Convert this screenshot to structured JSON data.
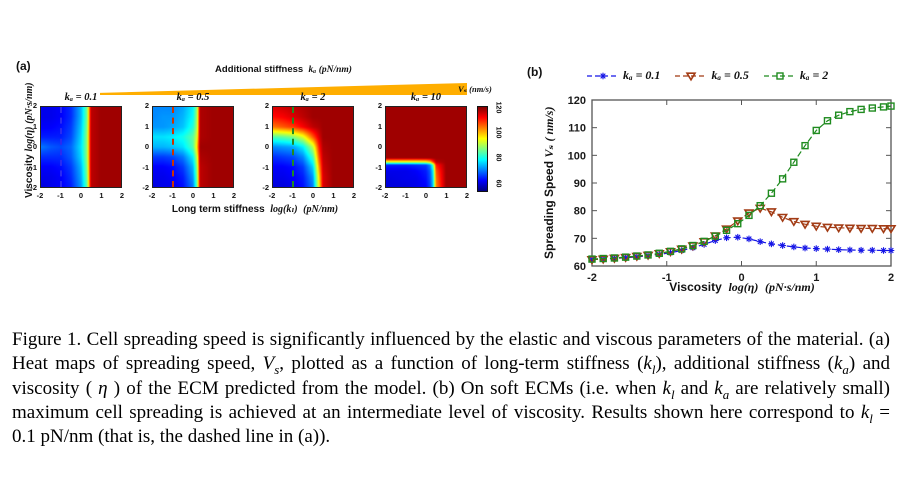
{
  "panel_a": {
    "label": "(a)",
    "wedge": {
      "label_pre": "Additional stiffness",
      "label_math": "kₐ",
      "label_unit": "(pN/nm)",
      "color": "#FFAE00"
    },
    "ylabel": {
      "pre": "Viscosity",
      "math": "log(η)",
      "unit": "(pN·s/nm)"
    },
    "xlabel": {
      "pre": "Long term stiffness",
      "math": "log(kₗ)",
      "unit": "(pN/nm)"
    },
    "colorbar": {
      "label": "Vₛ (nm/s)",
      "ticks": [
        120,
        100,
        80,
        60
      ]
    }
  },
  "panel_b": {
    "label": "(b)",
    "ylabel": {
      "pre": "Spreading Speed",
      "math": "Vₛ",
      "unit": "( nm/s)"
    },
    "xlabel": {
      "pre": "Viscosity",
      "math": "log(η)",
      "unit": "(pN·s/nm)"
    }
  },
  "chart_data": [
    {
      "type": "heatmap",
      "xlabel": "Long term stiffness log(kl) (pN/nm)",
      "ylabel": "Viscosity log(eta) (pN·s/nm)",
      "xlim": [
        -2,
        2
      ],
      "ylim": [
        -2,
        2
      ],
      "xticks": [
        -2,
        -1,
        0,
        1,
        2
      ],
      "yticks": [
        2,
        1,
        0,
        -1,
        -2
      ],
      "colormap": {
        "name": "jet",
        "vmin": 56,
        "vmax": 122,
        "stops": [
          [
            0,
            "#000080"
          ],
          [
            0.125,
            "#0000ff"
          ],
          [
            0.375,
            "#00ffff"
          ],
          [
            0.625,
            "#ffff00"
          ],
          [
            0.875,
            "#ff0000"
          ],
          [
            1,
            "#800000"
          ]
        ]
      },
      "colorbar_label": "Vs (nm/s)",
      "maps": [
        {
          "title": "kₐ = 0.1",
          "dash_x": -1,
          "dash_color": "#2a2af0",
          "x": [
            -2,
            -1.5,
            -1,
            -0.5,
            0,
            0.3,
            0.5,
            1,
            2
          ],
          "y": [
            2,
            1.5,
            1,
            0.5,
            0,
            -0.5,
            -1,
            -1.5,
            -2
          ],
          "values": [
            [
              63,
              63,
              64,
              67,
              76,
              88,
              118,
              120,
              120
            ],
            [
              63,
              63,
              64,
              67,
              76,
              88,
              118,
              120,
              120
            ],
            [
              64,
              64,
              65,
              68,
              77,
              89,
              118,
              120,
              120
            ],
            [
              66,
              66,
              66,
              69,
              78,
              90,
              118,
              120,
              120
            ],
            [
              72,
              70,
              69,
              71,
              79,
              90,
              118,
              120,
              120
            ],
            [
              67,
              67,
              67,
              70,
              78,
              90,
              118,
              120,
              120
            ],
            [
              64,
              64,
              65,
              68,
              76,
              89,
              118,
              120,
              120
            ],
            [
              63,
              63,
              64,
              67,
              75,
              88,
              118,
              120,
              120
            ],
            [
              62,
              63,
              64,
              66,
              74,
              87,
              118,
              120,
              120
            ]
          ]
        },
        {
          "title": "kₐ = 0.5",
          "dash_x": -1,
          "dash_color": "#cc3300",
          "x": [
            -2,
            -1.5,
            -1,
            -0.5,
            0,
            0.2,
            0.35,
            1,
            2
          ],
          "y": [
            2,
            1.5,
            1,
            0.5,
            0,
            -0.5,
            -1,
            -1.5,
            -2
          ],
          "values": [
            [
              73,
              73,
              73,
              75,
              80,
              90,
              119,
              120,
              120
            ],
            [
              73,
              74,
              74,
              76,
              81,
              91,
              119,
              120,
              120
            ],
            [
              74,
              74,
              75,
              77,
              83,
              92,
              119,
              120,
              120
            ],
            [
              79,
              79,
              80,
              82,
              87,
              95,
              119,
              120,
              120
            ],
            [
              76,
              76,
              77,
              79,
              86,
              99,
              120,
              120,
              120
            ],
            [
              68,
              68,
              69,
              72,
              80,
              93,
              119,
              120,
              120
            ],
            [
              64,
              64,
              65,
              68,
              76,
              90,
              118,
              120,
              120
            ],
            [
              63,
              63,
              64,
              66,
              74,
              88,
              118,
              120,
              120
            ],
            [
              62,
              63,
              63,
              65,
              72,
              87,
              118,
              120,
              120
            ]
          ]
        },
        {
          "title": "kₐ = 2",
          "dash_x": -1,
          "dash_color": "#1f8b1f",
          "x": [
            -2,
            -1.5,
            -1,
            -0.5,
            0,
            0.3,
            0.5,
            1,
            2
          ],
          "y": [
            2,
            1.5,
            1,
            0.5,
            0,
            -0.5,
            -1,
            -1.5,
            -2
          ],
          "values": [
            [
              116,
              117,
              118,
              119,
              120,
              120,
              120,
              120,
              120
            ],
            [
              113,
              114,
              116,
              118,
              120,
              120,
              120,
              120,
              120
            ],
            [
              106,
              108,
              110,
              114,
              118,
              119,
              120,
              120,
              120
            ],
            [
              86,
              87,
              89,
              95,
              108,
              116,
              120,
              120,
              120
            ],
            [
              73,
              74,
              75,
              80,
              93,
              112,
              119,
              120,
              120
            ],
            [
              67,
              68,
              69,
              73,
              85,
              108,
              118,
              120,
              120
            ],
            [
              64,
              64,
              65,
              68,
              78,
              103,
              117,
              120,
              120
            ],
            [
              63,
              63,
              64,
              66,
              74,
              99,
              116,
              120,
              120
            ],
            [
              62,
              62,
              63,
              65,
              72,
              97,
              116,
              120,
              120
            ]
          ]
        },
        {
          "title": "kₐ = 10",
          "dash_x": null,
          "dash_color": null,
          "x": [
            -2,
            -1,
            -0.5,
            0,
            0.2,
            0.35,
            0.5,
            1,
            2
          ],
          "y": [
            2,
            1,
            0,
            -0.55,
            -0.75,
            -0.9,
            -1.2,
            -1.6,
            -2
          ],
          "values": [
            [
              120,
              120,
              120,
              120,
              120,
              120,
              120,
              120,
              120
            ],
            [
              120,
              120,
              120,
              120,
              120,
              120,
              120,
              120,
              120
            ],
            [
              120,
              120,
              120,
              120,
              120,
              120,
              120,
              120,
              120
            ],
            [
              120,
              120,
              120,
              120,
              120,
              120,
              120,
              120,
              120
            ],
            [
              95,
              95,
              95,
              96,
              100,
              110,
              118,
              120,
              120
            ],
            [
              66,
              66,
              67,
              68,
              73,
              86,
              112,
              120,
              120
            ],
            [
              63,
              63,
              64,
              66,
              70,
              80,
              108,
              120,
              120
            ],
            [
              62,
              63,
              63,
              65,
              69,
              78,
              106,
              120,
              120
            ],
            [
              62,
              62,
              63,
              64,
              68,
              77,
              105,
              120,
              120
            ]
          ]
        }
      ]
    },
    {
      "type": "line",
      "xlabel": "Viscosity log(eta) (pN·s/nm)",
      "ylabel": "Spreading Speed Vs (nm/s)",
      "xlim": [
        -2,
        2
      ],
      "ylim": [
        60,
        120
      ],
      "xticks": [
        -2,
        -1,
        0,
        1,
        2
      ],
      "yticks": [
        60,
        70,
        80,
        90,
        100,
        110,
        120
      ],
      "line_style": "dashed",
      "legend_position": "top",
      "x": [
        -2.0,
        -1.85,
        -1.7,
        -1.55,
        -1.4,
        -1.25,
        -1.1,
        -0.95,
        -0.8,
        -0.65,
        -0.5,
        -0.35,
        -0.2,
        -0.05,
        0.1,
        0.25,
        0.4,
        0.55,
        0.7,
        0.85,
        1.0,
        1.15,
        1.3,
        1.45,
        1.6,
        1.75,
        1.9,
        2.0
      ],
      "series": [
        {
          "name": "kₐ = 0.1",
          "marker": "asterisk",
          "color": "#1414e6",
          "values": [
            62.3,
            62.5,
            62.7,
            63.0,
            63.3,
            63.7,
            64.2,
            64.8,
            65.6,
            66.6,
            67.8,
            69.2,
            70.2,
            70.4,
            69.8,
            68.8,
            68.0,
            67.4,
            66.9,
            66.5,
            66.3,
            66.1,
            65.9,
            65.8,
            65.7,
            65.7,
            65.6,
            65.6
          ]
        },
        {
          "name": "kₐ = 0.5",
          "marker": "triangle-down",
          "color": "#a23b14",
          "values": [
            62.3,
            62.5,
            62.8,
            63.1,
            63.5,
            63.9,
            64.5,
            65.2,
            66.1,
            67.3,
            68.8,
            70.9,
            73.4,
            76.3,
            79.2,
            80.9,
            79.6,
            77.6,
            76.1,
            75.1,
            74.4,
            74.0,
            73.8,
            73.7,
            73.6,
            73.6,
            73.5,
            73.5
          ]
        },
        {
          "name": "kₐ = 2",
          "marker": "square",
          "color": "#1f8b1f",
          "values": [
            62.5,
            62.7,
            62.9,
            63.2,
            63.6,
            64.0,
            64.6,
            65.3,
            66.2,
            67.4,
            68.9,
            70.8,
            72.9,
            75.3,
            78.3,
            81.8,
            86.3,
            91.5,
            97.5,
            103.5,
            109.0,
            112.5,
            114.5,
            115.8,
            116.6,
            117.1,
            117.5,
            117.8
          ]
        }
      ]
    }
  ],
  "caption": {
    "segments": [
      {
        "t": "Figure 1. Cell spreading speed is significantly influenced by the elastic and viscous parameters of the material. (a) Heat maps of spreading speed, "
      },
      {
        "t": "V",
        "i": true
      },
      {
        "t": "s",
        "i": true,
        "sub": true
      },
      {
        "t": ", plotted as a function of long-term stiffness ("
      },
      {
        "t": "k",
        "i": true
      },
      {
        "t": "l",
        "i": true,
        "sub": true
      },
      {
        "t": "), additional stiffness ("
      },
      {
        "t": "k",
        "i": true
      },
      {
        "t": "a",
        "i": true,
        "sub": true
      },
      {
        "t": ") and viscosity ( "
      },
      {
        "t": "η",
        "i": true
      },
      {
        "t": " ) of the ECM predicted from the model. (b) On soft ECMs (i.e. when "
      },
      {
        "t": "k",
        "i": true
      },
      {
        "t": "l",
        "i": true,
        "sub": true
      },
      {
        "t": " and "
      },
      {
        "t": "k",
        "i": true
      },
      {
        "t": "a",
        "i": true,
        "sub": true
      },
      {
        "t": " are relatively small) maximum cell spreading is achieved at an intermediate level of viscosity. Results shown here correspond to "
      },
      {
        "t": "k",
        "i": true
      },
      {
        "t": "l",
        "i": true,
        "sub": true
      },
      {
        "t": " = 0.1 pN/nm (that is, the dashed line in (a))."
      }
    ]
  }
}
